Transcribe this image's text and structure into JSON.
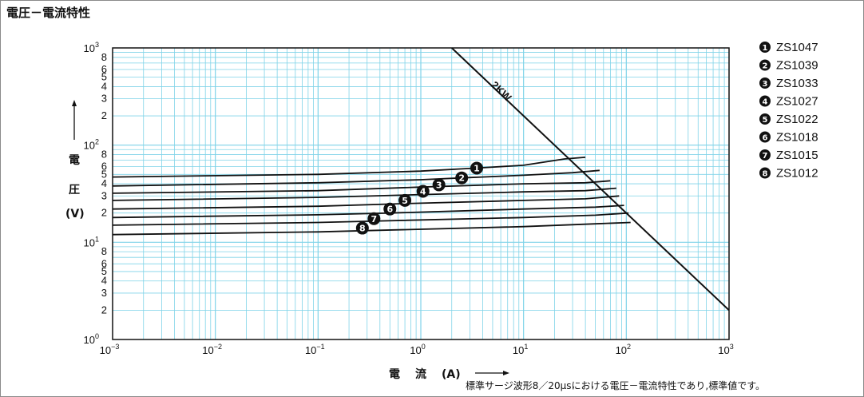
{
  "chart_data": {
    "type": "line",
    "title": "電圧－電流特性",
    "xlabel_chars": [
      "電",
      "流"
    ],
    "xlabel_unit": "(A)",
    "ylabel_chars": [
      "電",
      "圧"
    ],
    "ylabel_unit": "(V)",
    "x_scale": "log",
    "y_scale": "log",
    "xlim": [
      0.001,
      1000
    ],
    "ylim": [
      1,
      1000
    ],
    "x_ticks": [
      {
        "base": "10",
        "exp": "−3"
      },
      {
        "base": "10",
        "exp": "−2"
      },
      {
        "base": "10",
        "exp": "−1"
      },
      {
        "base": "10",
        "exp": "0"
      },
      {
        "base": "10",
        "exp": "1"
      },
      {
        "base": "10",
        "exp": "2"
      },
      {
        "base": "10",
        "exp": "3"
      }
    ],
    "y_decade_ticks": [
      {
        "base": "10",
        "exp": "0"
      },
      {
        "base": "10",
        "exp": "1"
      },
      {
        "base": "10",
        "exp": "2"
      },
      {
        "base": "10",
        "exp": "3"
      }
    ],
    "y_minor_labels": [
      "2",
      "3",
      "4",
      "5",
      "6",
      "8"
    ],
    "grid": true,
    "legend_position": "right",
    "series": [
      {
        "name": "ZS1047",
        "marker": "1",
        "x": [
          0.001,
          0.1,
          1,
          3.5,
          10,
          25,
          40
        ],
        "y": [
          47,
          50,
          54,
          58,
          62,
          72,
          75
        ]
      },
      {
        "name": "ZS1039",
        "marker": "2",
        "x": [
          0.001,
          0.1,
          1,
          2.5,
          10,
          30,
          55
        ],
        "y": [
          38,
          41,
          44,
          46,
          49,
          52,
          55
        ]
      },
      {
        "name": "ZS1033",
        "marker": "3",
        "x": [
          0.001,
          0.1,
          1,
          10,
          40,
          70
        ],
        "y": [
          32,
          34,
          37,
          40,
          41,
          43
        ]
      },
      {
        "name": "ZS1027",
        "marker": "4",
        "x": [
          0.001,
          0.1,
          1,
          10,
          40,
          80
        ],
        "y": [
          27,
          29,
          31,
          33,
          34,
          36
        ]
      },
      {
        "name": "ZS1022",
        "marker": "5",
        "x": [
          0.001,
          0.1,
          0.7,
          10,
          40,
          85
        ],
        "y": [
          22,
          23.5,
          25,
          27,
          28,
          30
        ]
      },
      {
        "name": "ZS1018",
        "marker": "6",
        "x": [
          0.001,
          0.1,
          0.5,
          10,
          50,
          95
        ],
        "y": [
          18,
          19.2,
          20,
          22,
          23,
          24
        ]
      },
      {
        "name": "ZS1015",
        "marker": "7",
        "x": [
          0.001,
          0.1,
          0.4,
          10,
          50,
          105
        ],
        "y": [
          15,
          16,
          16.6,
          18,
          19,
          20
        ]
      },
      {
        "name": "ZS1012",
        "marker": "8",
        "x": [
          0.001,
          0.1,
          0.3,
          10,
          50,
          110
        ],
        "y": [
          12,
          12.8,
          13.2,
          14.5,
          15.5,
          16
        ]
      }
    ],
    "limit_line": {
      "label": "2KW",
      "x": [
        2,
        1000
      ],
      "y": [
        1000,
        2
      ]
    },
    "marker_positions": [
      {
        "label": "1",
        "x": 3.5,
        "y": 58
      },
      {
        "label": "2",
        "x": 2.5,
        "y": 46
      },
      {
        "label": "3",
        "x": 1.5,
        "y": 39
      },
      {
        "label": "4",
        "x": 1.05,
        "y": 33.5
      },
      {
        "label": "5",
        "x": 0.7,
        "y": 27
      },
      {
        "label": "6",
        "x": 0.5,
        "y": 22
      },
      {
        "label": "7",
        "x": 0.35,
        "y": 17.5
      },
      {
        "label": "8",
        "x": 0.27,
        "y": 14
      }
    ],
    "legend_items": [
      {
        "symbol": "❶",
        "label": "ZS1047"
      },
      {
        "symbol": "❷",
        "label": "ZS1039"
      },
      {
        "symbol": "❸",
        "label": "ZS1033"
      },
      {
        "symbol": "❹",
        "label": "ZS1027"
      },
      {
        "symbol": "❺",
        "label": "ZS1022"
      },
      {
        "symbol": "❻",
        "label": "ZS1018"
      },
      {
        "symbol": "❼",
        "label": "ZS1015"
      },
      {
        "symbol": "❽",
        "label": "ZS1012"
      }
    ],
    "footnote": "標準サージ波形8／20μsにおける電圧－電流特性であり,標準値です。",
    "colors": {
      "grid": "#7fd3e8",
      "curve": "#111111",
      "axis": "#111111",
      "background": "#ffffff"
    }
  }
}
